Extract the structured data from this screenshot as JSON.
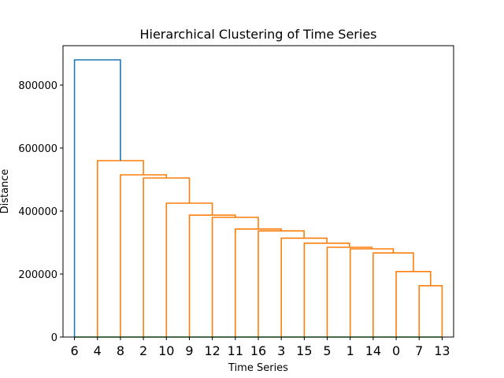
{
  "chart_data": {
    "type": "dendrogram",
    "title": "Hierarchical Clustering of Time Series",
    "xlabel": "Time Series",
    "ylabel": "Distance",
    "ylim": [
      0,
      925000
    ],
    "yticks": [
      0,
      200000,
      400000,
      600000,
      800000
    ],
    "ytick_labels": [
      "0",
      "200000",
      "400000",
      "600000",
      "800000"
    ],
    "leaves": [
      "6",
      "4",
      "8",
      "2",
      "10",
      "9",
      "12",
      "11",
      "16",
      "3",
      "15",
      "5",
      "1",
      "14",
      "0",
      "7",
      "13"
    ],
    "colors": {
      "above_threshold": "#1f77b4",
      "cluster": "#ff7f0e",
      "baseline": "#2ca02c"
    },
    "links": [
      {
        "left": 15,
        "right": 16,
        "height": 163000,
        "color": "cluster"
      },
      {
        "left": 14,
        "right": 15.5,
        "height": 208000,
        "color": "cluster"
      },
      {
        "left": 13,
        "right": 14.75,
        "height": 267000,
        "color": "cluster"
      },
      {
        "left": 12,
        "right": 13.875,
        "height": 280000,
        "color": "cluster"
      },
      {
        "left": 11,
        "right": 12.9375,
        "height": 285000,
        "color": "cluster"
      },
      {
        "left": 10,
        "right": 11.96875,
        "height": 298000,
        "color": "cluster"
      },
      {
        "left": 9,
        "right": 10.984375,
        "height": 314000,
        "color": "cluster"
      },
      {
        "left": 8,
        "right": 9.9921875,
        "height": 337000,
        "color": "cluster"
      },
      {
        "left": 7,
        "right": 8.99609375,
        "height": 343000,
        "color": "cluster"
      },
      {
        "left": 6,
        "right": 7.998046875,
        "height": 380000,
        "color": "cluster"
      },
      {
        "left": 5,
        "right": 6.9990234375,
        "height": 387000,
        "color": "cluster"
      },
      {
        "left": 4,
        "right": 5.99951171875,
        "height": 425000,
        "color": "cluster"
      },
      {
        "left": 3,
        "right": 4.999755859375,
        "height": 505000,
        "color": "cluster"
      },
      {
        "left": 2,
        "right": 3.9998779296875,
        "height": 515000,
        "color": "cluster"
      },
      {
        "left": 1,
        "right": 2.99993896484375,
        "height": 560000,
        "color": "cluster"
      },
      {
        "left": 0,
        "right": 1.999969482421875,
        "height": 880000,
        "color": "above_threshold"
      }
    ]
  }
}
